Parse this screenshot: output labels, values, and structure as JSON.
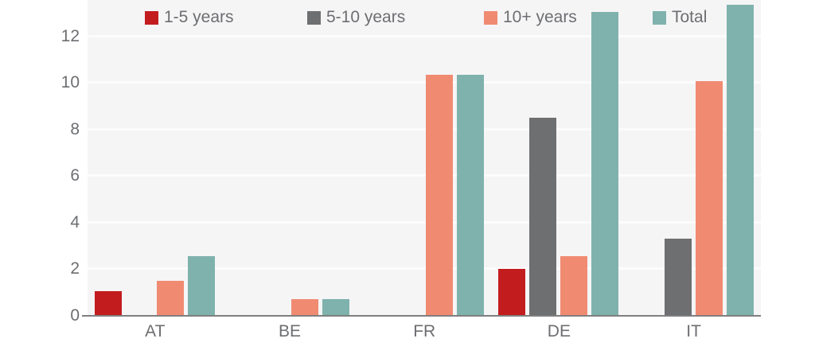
{
  "chart_data": {
    "type": "bar",
    "title": "",
    "xlabel": "",
    "ylabel": "",
    "categories": [
      "AT",
      "BE",
      "FR",
      "DE",
      "IT"
    ],
    "series": [
      {
        "name": "1-5 years",
        "color": "#c31c1f",
        "values": [
          1.05,
          0,
          0,
          2.0,
          0
        ]
      },
      {
        "name": "5-10 years",
        "color": "#6e6f71",
        "values": [
          0,
          0,
          0,
          8.5,
          3.3
        ]
      },
      {
        "name": "10+ years",
        "color": "#f08b72",
        "values": [
          1.5,
          0.7,
          10.35,
          2.55,
          10.05
        ]
      },
      {
        "name": "Total",
        "color": "#7fb2ad",
        "values": [
          2.55,
          0.7,
          10.35,
          13.05,
          13.35
        ]
      }
    ],
    "yticks": [
      0,
      2,
      4,
      6,
      8,
      10,
      12
    ],
    "ylim": [
      0,
      13.55
    ],
    "grid": true,
    "legend_position": "top"
  },
  "colors": {
    "page_background": "#ffffff",
    "plot_background": "#f5f5f6",
    "gridline": "#fcfcfc",
    "axis_line": "#7f7f7f",
    "text": "#6d6e71"
  }
}
